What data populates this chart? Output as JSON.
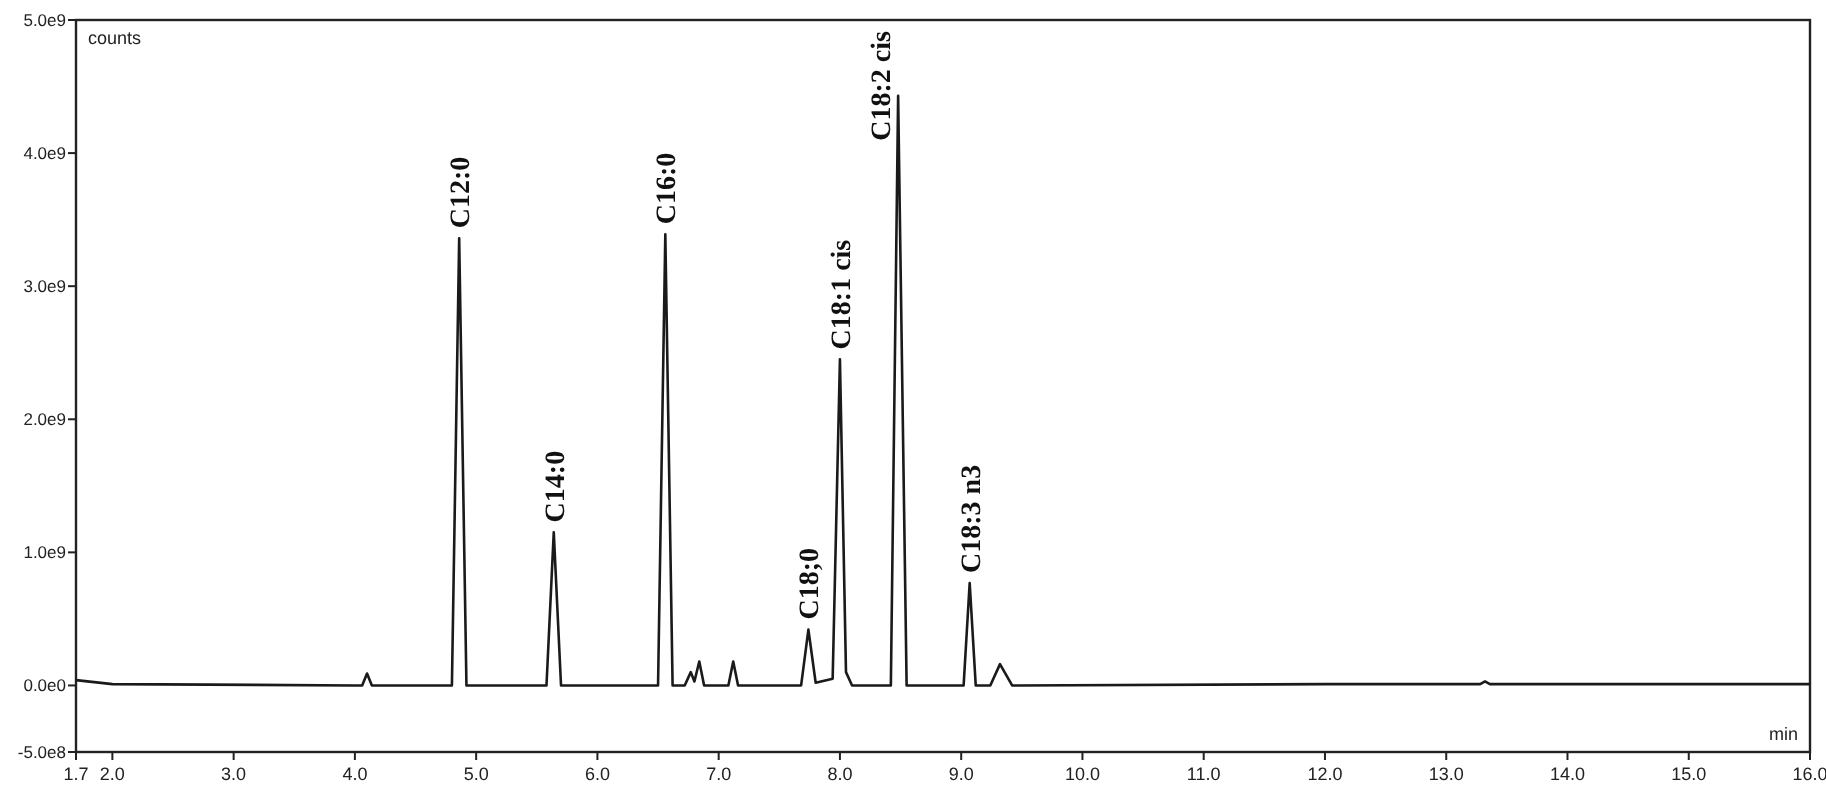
{
  "chart_data": {
    "type": "line",
    "xlabel": "min",
    "ylabel": "counts",
    "xlim": [
      1.7,
      16.0
    ],
    "ylim": [
      -500000000.0,
      5000000000.0
    ],
    "xticks": [
      1.7,
      {
        "value": 2,
        "label": "2.0"
      },
      {
        "value": 3,
        "label": "3.0"
      },
      {
        "value": 4,
        "label": "4.0"
      },
      {
        "value": 5,
        "label": "5.0"
      },
      {
        "value": 6,
        "label": "6.0"
      },
      {
        "value": 7,
        "label": "7.0"
      },
      {
        "value": 8,
        "label": "8.0"
      },
      {
        "value": 9,
        "label": "9.0"
      },
      {
        "value": 10,
        "label": "10.0"
      },
      {
        "value": 11,
        "label": "11.0"
      },
      {
        "value": 12,
        "label": "12.0"
      },
      {
        "value": 13,
        "label": "13.0"
      },
      {
        "value": 14,
        "label": "14.0"
      },
      {
        "value": 15,
        "label": "15.0"
      },
      {
        "value": 16,
        "label": "16.0"
      }
    ],
    "yticks": [
      {
        "value": -500000000.0,
        "label": "-5.0e8"
      },
      {
        "value": 0,
        "label": "0.0e0"
      },
      {
        "value": 1000000000.0,
        "label": "1.0e9"
      },
      {
        "value": 2000000000.0,
        "label": "2.0e9"
      },
      {
        "value": 3000000000.0,
        "label": "3.0e9"
      },
      {
        "value": 4000000000.0,
        "label": "4.0e9"
      },
      {
        "value": 5000000000.0,
        "label": "5.0e9"
      }
    ],
    "grid": false,
    "marker": "none",
    "line_style": "solid",
    "series": [
      {
        "color": "#1a1a1a",
        "x": [
          1.7,
          2.0,
          4.0,
          4.06,
          4.1,
          4.14,
          4.8,
          4.86,
          4.92,
          5.58,
          5.64,
          5.7,
          6.5,
          6.56,
          6.62,
          6.72,
          6.77,
          6.8,
          6.84,
          6.88,
          7.08,
          7.12,
          7.16,
          7.68,
          7.74,
          7.8,
          7.94,
          8.0,
          8.05,
          8.1,
          8.42,
          8.48,
          8.55,
          9.02,
          9.07,
          9.12,
          9.24,
          9.32,
          9.42,
          12.0,
          13.28,
          13.32,
          13.36,
          16.0
        ],
        "values": [
          40000000.0,
          10000000.0,
          0,
          0,
          90000000.0,
          0,
          0,
          3360000000.0,
          0,
          0,
          1150000000.0,
          0,
          0,
          3390000000.0,
          0,
          0,
          100000000.0,
          30000000.0,
          180000000.0,
          0,
          0,
          180000000.0,
          0,
          0,
          420000000.0,
          20000000.0,
          50000000.0,
          2450000000.0,
          100000000.0,
          0,
          0,
          4430000000.0,
          0,
          0,
          770000000.0,
          0,
          0,
          160000000.0,
          0,
          10000000.0,
          10000000.0,
          30000000.0,
          10000000.0,
          10000000.0
        ]
      }
    ],
    "annotations": [
      {
        "text": "C12:0",
        "x": 4.86,
        "y": 3360000000.0
      },
      {
        "text": "C14:0",
        "x": 5.64,
        "y": 1150000000.0
      },
      {
        "text": "C16:0",
        "x": 6.56,
        "y": 3390000000.0
      },
      {
        "text": "C18;0",
        "x": 7.74,
        "y": 420000000.0
      },
      {
        "text": "C18:1 cis",
        "x": 8.0,
        "y": 2450000000.0
      },
      {
        "text": "C18:2 cis",
        "x": 8.48,
        "y": 4430000000.0
      },
      {
        "text": "C18:3 n3",
        "x": 9.07,
        "y": 770000000.0
      }
    ]
  }
}
